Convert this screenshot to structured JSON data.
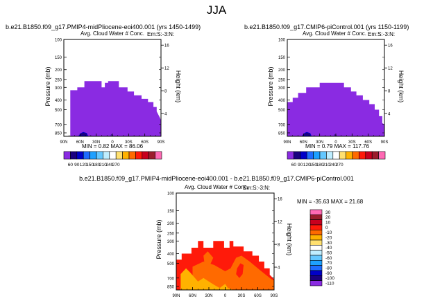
{
  "season_title": "JJA",
  "panels": [
    {
      "case_title": "b.e21.B1850.f09_g17.PMIP4-midPliocene-eoi400.001 (yrs 1450-1499)",
      "plot_title": "Avg. Cloud Water # Conc.",
      "subtitle": "Em:S:-3:N:",
      "ylabel_left": "Pressure (mb)",
      "ylabel_right": "Height (km)",
      "stats": "MIN =    0.82   MAX =   86.06"
    },
    {
      "case_title": "b.e21.B1850.f09_g17.CMIP6-piControl.001 (yrs 1150-1199)",
      "plot_title": "Avg. Cloud Water # Conc.",
      "subtitle": "Em:S:-3:N:",
      "ylabel_left": "Pressure (mb)",
      "ylabel_right": "Height (km)",
      "stats": "MIN =    0.79   MAX =  117.76"
    },
    {
      "case_title": "b.e21.B1850.f09_g17.PMIP4-midPliocene-eoi400.001 - b.e21.B1850.f09_g17.CMIP6-piControl.001",
      "plot_title": "Avg. Cloud Water # Conc.",
      "subtitle": "Em:S:-3:N:",
      "ylabel_left": "Pressure (mb)",
      "ylabel_right": "Height (km)",
      "stats": "MIN =  -35.63   MAX =   21.68"
    }
  ],
  "chart_data": [
    {
      "type": "heatmap",
      "title": "Avg. Cloud Water # Conc.",
      "xlabel": "",
      "ylabel": "Pressure (mb)",
      "y2label": "Height (km)",
      "x_ticks": [
        "90N",
        "60N",
        "30N",
        "0",
        "30S",
        "60S",
        "90S"
      ],
      "x_tick_values": [
        90,
        60,
        30,
        0,
        -30,
        -60,
        -90
      ],
      "y_ticks": [
        "100",
        "150",
        "200",
        "250",
        "300",
        "400",
        "500",
        "700",
        "850"
      ],
      "y_tick_values": [
        100,
        150,
        200,
        250,
        300,
        400,
        500,
        700,
        850
      ],
      "y2_ticks": [
        "16",
        "12",
        "8",
        "4"
      ],
      "y2_tick_values": [
        16,
        12,
        8,
        4
      ],
      "ylim": [
        100,
        920
      ],
      "xlim": [
        90,
        -90
      ],
      "min": 0.82,
      "max": 86.06,
      "cloud_top": [
        {
          "lat": 90,
          "p": 920
        },
        {
          "lat": 78,
          "p": 920
        },
        {
          "lat": 78,
          "p": 320
        },
        {
          "lat": 65,
          "p": 320
        },
        {
          "lat": 65,
          "p": 300
        },
        {
          "lat": 52,
          "p": 300
        },
        {
          "lat": 52,
          "p": 260
        },
        {
          "lat": 20,
          "p": 260
        },
        {
          "lat": 20,
          "p": 300
        },
        {
          "lat": 14,
          "p": 300
        },
        {
          "lat": 14,
          "p": 270
        },
        {
          "lat": 8,
          "p": 270
        },
        {
          "lat": 8,
          "p": 260
        },
        {
          "lat": -12,
          "p": 260
        },
        {
          "lat": -12,
          "p": 300
        },
        {
          "lat": -28,
          "p": 300
        },
        {
          "lat": -28,
          "p": 330
        },
        {
          "lat": -40,
          "p": 330
        },
        {
          "lat": -40,
          "p": 360
        },
        {
          "lat": -54,
          "p": 360
        },
        {
          "lat": -54,
          "p": 390
        },
        {
          "lat": -66,
          "p": 390
        },
        {
          "lat": -66,
          "p": 420
        },
        {
          "lat": -76,
          "p": 420
        },
        {
          "lat": -76,
          "p": 470
        },
        {
          "lat": -82,
          "p": 470
        },
        {
          "lat": -82,
          "p": 520
        },
        {
          "lat": -88,
          "p": 600
        },
        {
          "lat": -90,
          "p": 640
        },
        {
          "lat": -90,
          "p": 920
        }
      ],
      "fill_color": "#8a2be2"
    },
    {
      "type": "heatmap",
      "title": "Avg. Cloud Water # Conc.",
      "xlabel": "",
      "ylabel": "Pressure (mb)",
      "y2label": "Height (km)",
      "x_ticks": [
        "90N",
        "60N",
        "30N",
        "0",
        "30S",
        "60S",
        "90S"
      ],
      "x_tick_values": [
        90,
        60,
        30,
        0,
        -30,
        -60,
        -90
      ],
      "y_ticks": [
        "100",
        "150",
        "200",
        "250",
        "300",
        "400",
        "500",
        "700",
        "850"
      ],
      "y_tick_values": [
        100,
        150,
        200,
        250,
        300,
        400,
        500,
        700,
        850
      ],
      "y2_ticks": [
        "16",
        "12",
        "8",
        "4"
      ],
      "y2_tick_values": [
        16,
        12,
        8,
        4
      ],
      "ylim": [
        100,
        920
      ],
      "xlim": [
        90,
        -90
      ],
      "min": 0.79,
      "max": 117.76,
      "cloud_top": [
        {
          "lat": 90,
          "p": 920
        },
        {
          "lat": 90,
          "p": 420
        },
        {
          "lat": 80,
          "p": 420
        },
        {
          "lat": 80,
          "p": 380
        },
        {
          "lat": 70,
          "p": 380
        },
        {
          "lat": 70,
          "p": 340
        },
        {
          "lat": 55,
          "p": 340
        },
        {
          "lat": 55,
          "p": 300
        },
        {
          "lat": 30,
          "p": 300
        },
        {
          "lat": 30,
          "p": 270
        },
        {
          "lat": -15,
          "p": 270
        },
        {
          "lat": -15,
          "p": 300
        },
        {
          "lat": -28,
          "p": 300
        },
        {
          "lat": -28,
          "p": 330
        },
        {
          "lat": -38,
          "p": 330
        },
        {
          "lat": -38,
          "p": 360
        },
        {
          "lat": -50,
          "p": 360
        },
        {
          "lat": -50,
          "p": 400
        },
        {
          "lat": -62,
          "p": 400
        },
        {
          "lat": -62,
          "p": 440
        },
        {
          "lat": -72,
          "p": 440
        },
        {
          "lat": -72,
          "p": 500
        },
        {
          "lat": -80,
          "p": 500
        },
        {
          "lat": -80,
          "p": 580
        },
        {
          "lat": -86,
          "p": 580
        },
        {
          "lat": -86,
          "p": 680
        },
        {
          "lat": -90,
          "p": 700
        },
        {
          "lat": -90,
          "p": 920
        }
      ],
      "fill_color": "#8a2be2"
    },
    {
      "type": "heatmap",
      "title": "Avg. Cloud Water # Conc.",
      "xlabel": "",
      "ylabel": "Pressure (mb)",
      "y2label": "Height (km)",
      "x_ticks": [
        "90N",
        "60N",
        "30N",
        "0",
        "30S",
        "60S",
        "90S"
      ],
      "x_tick_values": [
        90,
        60,
        30,
        0,
        -30,
        -60,
        -90
      ],
      "y_ticks": [
        "100",
        "150",
        "200",
        "250",
        "300",
        "400",
        "500",
        "700",
        "850"
      ],
      "y_tick_values": [
        100,
        150,
        200,
        250,
        300,
        400,
        500,
        700,
        850
      ],
      "y2_ticks": [
        "16",
        "12",
        "8",
        "4"
      ],
      "y2_tick_values": [
        16,
        12,
        8,
        4
      ],
      "ylim": [
        100,
        920
      ],
      "xlim": [
        90,
        -90
      ],
      "min": -35.63,
      "max": 21.68,
      "cloud_top": [
        {
          "lat": 90,
          "p": 920
        },
        {
          "lat": 90,
          "p": 460
        },
        {
          "lat": 80,
          "p": 460
        },
        {
          "lat": 80,
          "p": 400
        },
        {
          "lat": 62,
          "p": 400
        },
        {
          "lat": 62,
          "p": 350
        },
        {
          "lat": 50,
          "p": 350
        },
        {
          "lat": 50,
          "p": 300
        },
        {
          "lat": 40,
          "p": 300
        },
        {
          "lat": 40,
          "p": 350
        },
        {
          "lat": 22,
          "p": 350
        },
        {
          "lat": 22,
          "p": 300
        },
        {
          "lat": 2,
          "p": 300
        },
        {
          "lat": 2,
          "p": 350
        },
        {
          "lat": -8,
          "p": 350
        },
        {
          "lat": -8,
          "p": 300
        },
        {
          "lat": -15,
          "p": 300
        },
        {
          "lat": -15,
          "p": 340
        },
        {
          "lat": -34,
          "p": 340
        },
        {
          "lat": -34,
          "p": 380
        },
        {
          "lat": -50,
          "p": 380
        },
        {
          "lat": -50,
          "p": 420
        },
        {
          "lat": -62,
          "p": 420
        },
        {
          "lat": -62,
          "p": 480
        },
        {
          "lat": -72,
          "p": 480
        },
        {
          "lat": -72,
          "p": 560
        },
        {
          "lat": -82,
          "p": 560
        },
        {
          "lat": -82,
          "p": 650
        },
        {
          "lat": -88,
          "p": 700
        },
        {
          "lat": -90,
          "p": 720
        },
        {
          "lat": -90,
          "p": 920
        }
      ],
      "fill_color": "#ff1a0a"
    }
  ],
  "colorbar_abs": {
    "labels": [
      "60",
      "90",
      "120",
      "150",
      "180",
      "210",
      "240",
      "270"
    ],
    "colors": [
      "#8a2be2",
      "#1a0080",
      "#0000c8",
      "#1e6bff",
      "#1ea0ff",
      "#64c8ff",
      "#bfeeff",
      "#ffffff",
      "#ffe070",
      "#ffb200",
      "#ff6a00",
      "#ff1a0a",
      "#c8001e",
      "#9b1c2c",
      "#ff69b4"
    ]
  },
  "colorbar_diff": {
    "labels": [
      "30",
      "20",
      "10",
      "0",
      "-10",
      "-20",
      "-30",
      "-40",
      "-50",
      "-60",
      "-70",
      "-80",
      "-90",
      "-100",
      "-110"
    ],
    "colors": [
      "#ff69b4",
      "#9b1c2c",
      "#c8001e",
      "#ff1a0a",
      "#ff6a00",
      "#ffb200",
      "#ffe070",
      "#ffffff",
      "#bfeeff",
      "#64c8ff",
      "#1ea0ff",
      "#1e6bff",
      "#0000c8",
      "#1a0080",
      "#8a2be2"
    ]
  }
}
